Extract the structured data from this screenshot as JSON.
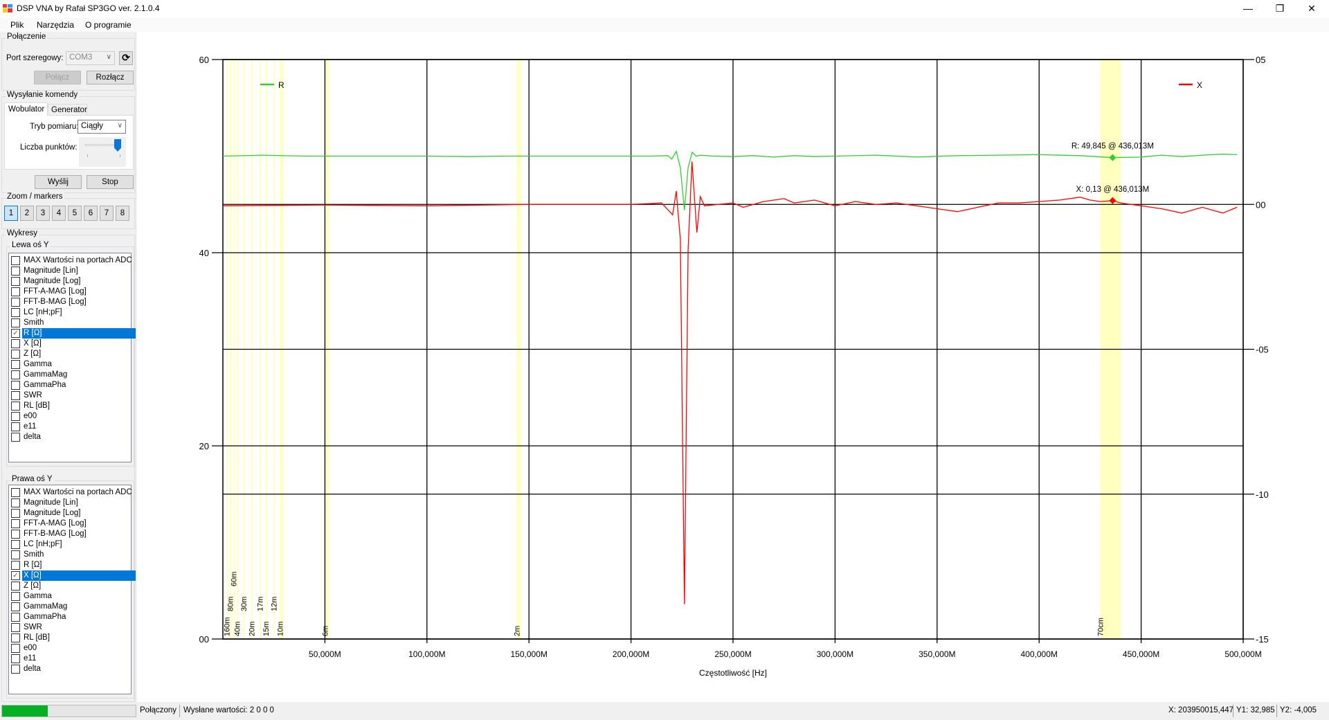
{
  "window": {
    "title": "DSP VNA by Rafał SP3GO ver. 2.1.0.4",
    "controls": [
      "—",
      "❐",
      "✕"
    ]
  },
  "menu": [
    "Plik",
    "Narzędzia",
    "O programie"
  ],
  "connection": {
    "group_label": "Połączenie",
    "port_label": "Port szeregowy:",
    "port_value": "COM3",
    "connect_label": "Połącz",
    "disconnect_label": "Rozłącz"
  },
  "command": {
    "group_label": "Wysyłanie komendy",
    "tabs": [
      "Wobulator",
      "Generator"
    ],
    "active_tab": "Wobulator",
    "mode_label": "Tryb pomiaru:",
    "mode_value": "Ciągły",
    "points_label": "Liczba punktów:",
    "points_slider_fraction": 1.0,
    "send_label": "Wyślij",
    "stop_label": "Stop"
  },
  "zoom": {
    "group_label": "Zoom / markers",
    "buttons": [
      "1",
      "2",
      "3",
      "4",
      "5",
      "6",
      "7",
      "8"
    ],
    "selected": "1"
  },
  "plots": {
    "group_label": "Wykresy",
    "left": {
      "label": "Lewa oś Y",
      "items": [
        "MAX Wartości na portach ADC",
        "Magnitude [Lin]",
        "Magnitude [Log]",
        "FFT-A-MAG [Log]",
        "FFT-B-MAG [Log]",
        "LC [nH;pF]",
        "Smith",
        "R [Ω]",
        "X [Ω]",
        "Z [Ω]",
        "Gamma",
        "GammaMag",
        "GammaPha",
        "SWR",
        "RL [dB]",
        "e00",
        "e11",
        "delta"
      ],
      "checked": "R [Ω]"
    },
    "right": {
      "label": "Prawa oś Y",
      "items": [
        "MAX Wartości na portach ADC",
        "Magnitude [Lin]",
        "Magnitude [Log]",
        "FFT-A-MAG [Log]",
        "FFT-B-MAG [Log]",
        "LC [nH;pF]",
        "Smith",
        "R [Ω]",
        "X [Ω]",
        "Z [Ω]",
        "Gamma",
        "GammaMag",
        "GammaPha",
        "SWR",
        "RL [dB]",
        "e00",
        "e11",
        "delta"
      ],
      "checked": "X [Ω]"
    }
  },
  "status": {
    "progress_fraction": 0.34,
    "progress_color": "#06b025",
    "state": "Połączony",
    "sent": "Wysłane wartości: 2 0 0 0",
    "x": "X: 203950015,447",
    "y1": "Y1: 32,985",
    "y2": "Y2: -4,005"
  },
  "chart_data": {
    "type": "line",
    "xlabel": "Częstotliwość [Hz]",
    "xlim": [
      0,
      500
    ],
    "x_unit": "MHz",
    "x_ticks": [
      50,
      100,
      150,
      200,
      250,
      300,
      350,
      400,
      450,
      500
    ],
    "x_tick_labels": [
      "50,000M",
      "100,000M",
      "150,000M",
      "200,000M",
      "250,000M",
      "300,000M",
      "350,000M",
      "400,000M",
      "450,000M",
      "500,000M"
    ],
    "y_left": {
      "lim": [
        0,
        60
      ],
      "ticks": [
        60,
        40,
        20,
        0
      ],
      "tick_labels": [
        "60",
        "40",
        "20",
        "00"
      ]
    },
    "y_right": {
      "lim": [
        -15,
        5
      ],
      "ticks": [
        5,
        0,
        -5,
        -10,
        -15
      ],
      "tick_labels": [
        "05",
        "00",
        "-05",
        "-10",
        "-15"
      ]
    },
    "grid": true,
    "bands": [
      {
        "label": "160m",
        "range": [
          1.8,
          2.0
        ]
      },
      {
        "label": "80m",
        "range": [
          3.5,
          3.8
        ]
      },
      {
        "label": "60m",
        "range": [
          5.3,
          5.4
        ]
      },
      {
        "label": "40m",
        "range": [
          7.0,
          7.2
        ]
      },
      {
        "label": "30m",
        "range": [
          10.1,
          10.15
        ]
      },
      {
        "label": "20m",
        "range": [
          14.0,
          14.35
        ]
      },
      {
        "label": "17m",
        "range": [
          18.07,
          18.17
        ]
      },
      {
        "label": "15m",
        "range": [
          21.0,
          21.45
        ]
      },
      {
        "label": "12m",
        "range": [
          24.89,
          24.99
        ]
      },
      {
        "label": "10m",
        "range": [
          28.0,
          29.7
        ]
      },
      {
        "label": "6m",
        "range": [
          50.0,
          52.0
        ]
      },
      {
        "label": "2m",
        "range": [
          144.0,
          146.0
        ]
      },
      {
        "label": "70cm",
        "range": [
          430.0,
          440.0
        ]
      }
    ],
    "band_color": "#ffffc0",
    "series": [
      {
        "name": "R",
        "axis": "left",
        "color": "#33cc33",
        "legend": "top-left",
        "points": [
          [
            0,
            50
          ],
          [
            20,
            50.1
          ],
          [
            40,
            50
          ],
          [
            60,
            50
          ],
          [
            80,
            50
          ],
          [
            100,
            50
          ],
          [
            120,
            49.95
          ],
          [
            140,
            50
          ],
          [
            160,
            50
          ],
          [
            180,
            50
          ],
          [
            200,
            50
          ],
          [
            210,
            50
          ],
          [
            218,
            50.05
          ],
          [
            220,
            49.7
          ],
          [
            222.2,
            50.5
          ],
          [
            224.2,
            48.8
          ],
          [
            226.2,
            44.4
          ],
          [
            228,
            48.8
          ],
          [
            230,
            50.4
          ],
          [
            232,
            50
          ],
          [
            234,
            50.1
          ],
          [
            240,
            50
          ],
          [
            250,
            49.95
          ],
          [
            260,
            50.05
          ],
          [
            270,
            49.9
          ],
          [
            280,
            50.05
          ],
          [
            290,
            49.95
          ],
          [
            300,
            50
          ],
          [
            320,
            50.1
          ],
          [
            340,
            49.9
          ],
          [
            360,
            50.05
          ],
          [
            380,
            50.1
          ],
          [
            400,
            50.15
          ],
          [
            420,
            50.05
          ],
          [
            436.013,
            49.845
          ],
          [
            450,
            49.9
          ],
          [
            460,
            50.1
          ],
          [
            470,
            49.95
          ],
          [
            480,
            50.1
          ],
          [
            490,
            50.2
          ],
          [
            497,
            50.15
          ]
        ]
      },
      {
        "name": "X",
        "axis": "right",
        "color": "#ff0000",
        "legend": "top-right",
        "points": [
          [
            0,
            -0.05
          ],
          [
            50,
            -0.02
          ],
          [
            100,
            -0.05
          ],
          [
            150,
            0
          ],
          [
            200,
            0
          ],
          [
            215,
            0.05
          ],
          [
            220.4,
            -0.36
          ],
          [
            222.2,
            0.46
          ],
          [
            224.2,
            -1.2
          ],
          [
            226.2,
            -13.8
          ],
          [
            228,
            -1.57
          ],
          [
            229.9,
            1.48
          ],
          [
            232.3,
            -0.97
          ],
          [
            234,
            0.27
          ],
          [
            236,
            -0.05
          ],
          [
            250,
            0.05
          ],
          [
            255,
            -0.1
          ],
          [
            265,
            0.1
          ],
          [
            275,
            0.2
          ],
          [
            280,
            0.05
          ],
          [
            290,
            0.15
          ],
          [
            300,
            -0.05
          ],
          [
            310,
            0.1
          ],
          [
            320,
            0
          ],
          [
            330,
            0.05
          ],
          [
            345,
            -0.1
          ],
          [
            350,
            -0.15
          ],
          [
            360,
            -0.25
          ],
          [
            370,
            -0.1
          ],
          [
            380,
            0.05
          ],
          [
            390,
            0.05
          ],
          [
            400,
            0.1
          ],
          [
            410,
            0.15
          ],
          [
            420,
            0.25
          ],
          [
            425,
            0.15
          ],
          [
            430,
            0.1
          ],
          [
            436.013,
            0.13
          ],
          [
            440,
            0.05
          ],
          [
            450,
            -0.05
          ],
          [
            460,
            -0.15
          ],
          [
            470,
            -0.3
          ],
          [
            480,
            -0.1
          ],
          [
            490,
            -0.3
          ],
          [
            497,
            -0.1
          ]
        ]
      }
    ],
    "markers": [
      {
        "series": "R",
        "x": 436.013,
        "y": 49.845,
        "label": "R: 49,845 @ 436,013M"
      },
      {
        "series": "X",
        "x": 436.013,
        "y": 0.13,
        "label": "X: 0,13 @ 436,013M"
      }
    ]
  }
}
